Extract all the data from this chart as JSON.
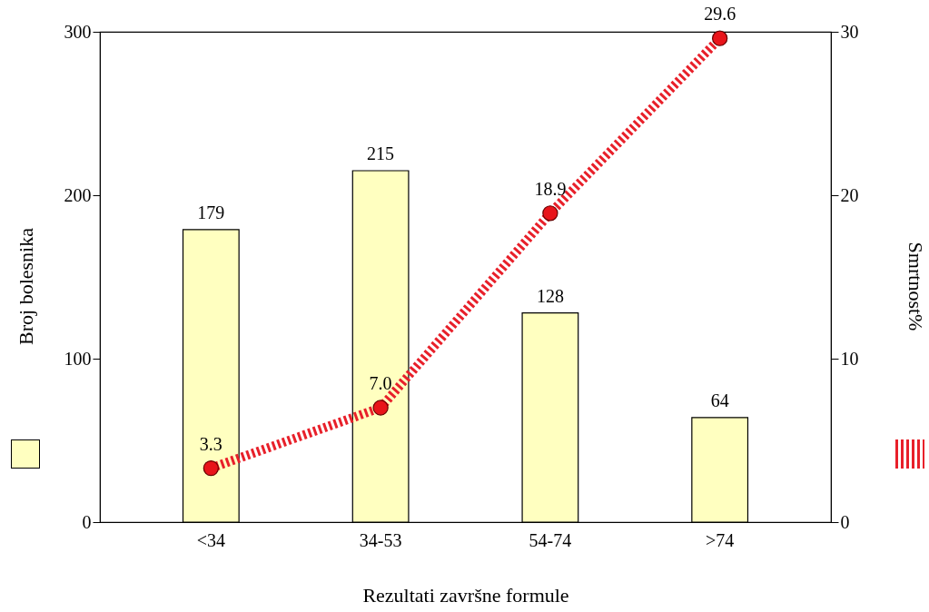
{
  "chart_data": {
    "type": "bar",
    "xlabel": "Rezultati završne formule",
    "ylabel": "Broj bolesnika",
    "y2label": "Smrtnost%",
    "categories": [
      "<34",
      "34-53",
      "54-74",
      ">74"
    ],
    "series": [
      {
        "color": "#ffffc0",
        "values": [
          179,
          215,
          128,
          64
        ],
        "value_labels": [
          "179",
          "215",
          "128",
          "64"
        ]
      },
      {
        "type": "line",
        "axis": "y2",
        "color": "#e8202a",
        "values": [
          3.3,
          7.0,
          18.9,
          29.6
        ],
        "value_labels": [
          "3.3",
          "7.0",
          "18.9",
          "29.6"
        ]
      }
    ],
    "ylim": [
      0,
      300
    ],
    "yticks": [
      0,
      100,
      200,
      300
    ],
    "y2lim": [
      0,
      30
    ],
    "y2ticks": [
      0,
      10,
      20,
      30
    ],
    "marker": "circle",
    "line_style": "dashed"
  }
}
